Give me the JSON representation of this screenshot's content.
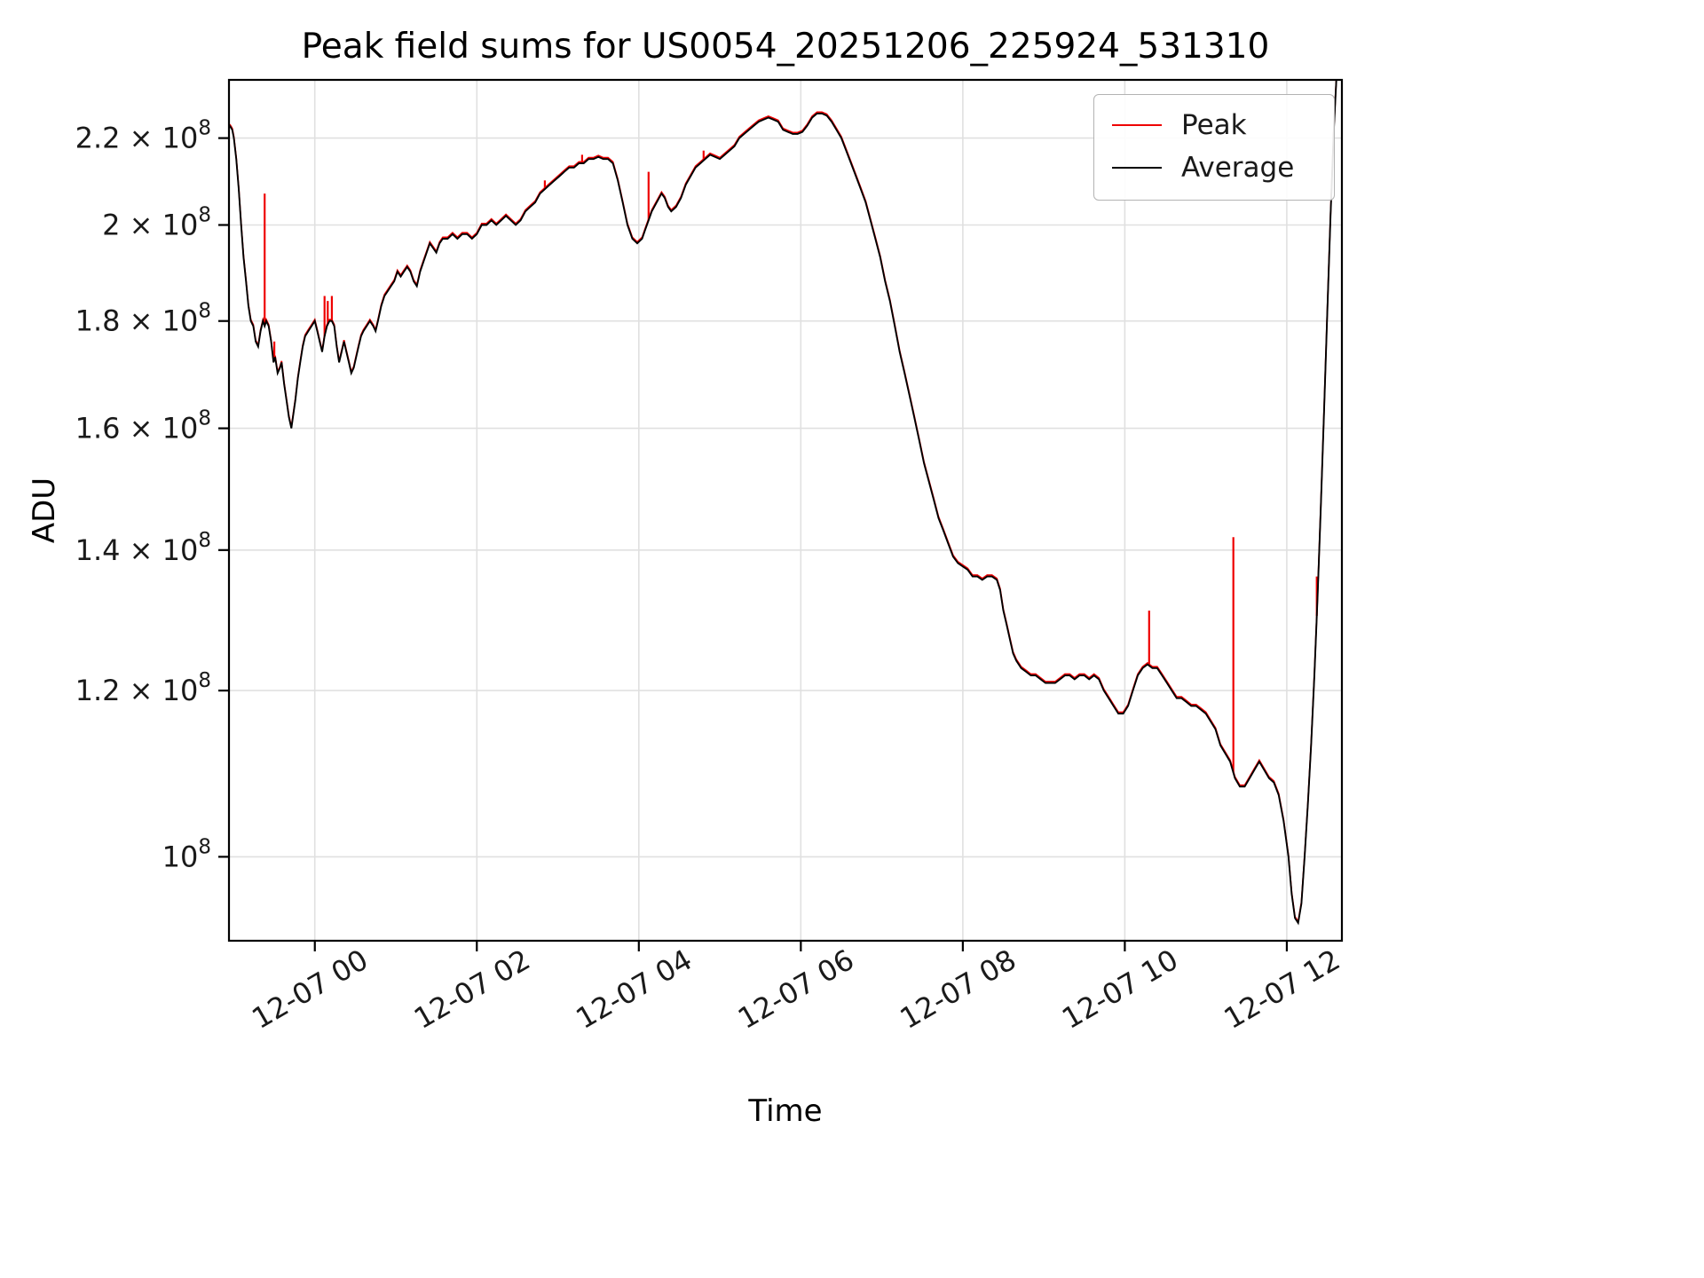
{
  "chart_data": {
    "type": "line",
    "title": "Peak field sums for US0054_20251206_225924_531310",
    "xlabel": "Time",
    "ylabel": "ADU",
    "y_scale": "log",
    "y_value_unit": "1e8 ADU",
    "x_unit": "hours relative to 2025-12-07 00:00",
    "xlim": [
      -1.06,
      12.68
    ],
    "ylim_1e8": [
      0.912,
      2.345
    ],
    "grid": true,
    "grid_color": "#e0e0e0",
    "legend_position": "upper right",
    "x_ticks": [
      {
        "t": 0,
        "label": "12-07 00"
      },
      {
        "t": 2,
        "label": "12-07 02"
      },
      {
        "t": 4,
        "label": "12-07 04"
      },
      {
        "t": 6,
        "label": "12-07 06"
      },
      {
        "t": 8,
        "label": "12-07 08"
      },
      {
        "t": 10,
        "label": "12-07 10"
      },
      {
        "t": 12,
        "label": "12-07 12"
      }
    ],
    "y_ticks": [
      {
        "v": 1.0,
        "mantissa": "10",
        "exp": "8"
      },
      {
        "v": 1.2,
        "mantissa": "1.2 × 10",
        "exp": "8"
      },
      {
        "v": 1.4,
        "mantissa": "1.4 × 10",
        "exp": "8"
      },
      {
        "v": 1.6,
        "mantissa": "1.6 × 10",
        "exp": "8"
      },
      {
        "v": 1.8,
        "mantissa": "1.8 × 10",
        "exp": "8"
      },
      {
        "v": 2.0,
        "mantissa": "2 × 10",
        "exp": "8"
      },
      {
        "v": 2.2,
        "mantissa": "2.2 × 10",
        "exp": "8"
      }
    ],
    "series": [
      {
        "name": "Peak",
        "color": "#ee0000",
        "note": "follows Average with upward spikes",
        "spikes": [
          [
            -0.62,
            2.07
          ],
          [
            -0.5,
            1.76
          ],
          [
            0.12,
            1.85
          ],
          [
            0.16,
            1.84
          ],
          [
            0.21,
            1.85
          ],
          [
            2.84,
            2.1
          ],
          [
            3.3,
            2.16
          ],
          [
            4.12,
            2.12
          ],
          [
            4.8,
            2.17
          ],
          [
            10.3,
            1.31
          ],
          [
            11.34,
            1.42
          ],
          [
            12.37,
            1.36
          ]
        ]
      },
      {
        "name": "Average",
        "color": "#000000",
        "points": [
          [
            -1.05,
            2.23
          ],
          [
            -1.02,
            2.22
          ],
          [
            -1.0,
            2.2
          ],
          [
            -0.97,
            2.15
          ],
          [
            -0.94,
            2.08
          ],
          [
            -0.91,
            2.0
          ],
          [
            -0.88,
            1.93
          ],
          [
            -0.85,
            1.88
          ],
          [
            -0.82,
            1.83
          ],
          [
            -0.79,
            1.8
          ],
          [
            -0.76,
            1.79
          ],
          [
            -0.73,
            1.76
          ],
          [
            -0.7,
            1.75
          ],
          [
            -0.67,
            1.78
          ],
          [
            -0.64,
            1.8
          ],
          [
            -0.62,
            1.79
          ],
          [
            -0.6,
            1.8
          ],
          [
            -0.57,
            1.79
          ],
          [
            -0.54,
            1.76
          ],
          [
            -0.51,
            1.72
          ],
          [
            -0.49,
            1.73
          ],
          [
            -0.46,
            1.7
          ],
          [
            -0.43,
            1.71
          ],
          [
            -0.41,
            1.72
          ],
          [
            -0.38,
            1.68
          ],
          [
            -0.35,
            1.65
          ],
          [
            -0.32,
            1.62
          ],
          [
            -0.29,
            1.6
          ],
          [
            -0.27,
            1.62
          ],
          [
            -0.24,
            1.65
          ],
          [
            -0.21,
            1.69
          ],
          [
            -0.18,
            1.72
          ],
          [
            -0.15,
            1.75
          ],
          [
            -0.12,
            1.77
          ],
          [
            -0.08,
            1.78
          ],
          [
            -0.04,
            1.79
          ],
          [
            0.0,
            1.8
          ],
          [
            0.03,
            1.78
          ],
          [
            0.06,
            1.76
          ],
          [
            0.09,
            1.74
          ],
          [
            0.12,
            1.77
          ],
          [
            0.15,
            1.79
          ],
          [
            0.18,
            1.8
          ],
          [
            0.21,
            1.8
          ],
          [
            0.24,
            1.79
          ],
          [
            0.27,
            1.75
          ],
          [
            0.3,
            1.72
          ],
          [
            0.33,
            1.74
          ],
          [
            0.36,
            1.76
          ],
          [
            0.39,
            1.74
          ],
          [
            0.42,
            1.72
          ],
          [
            0.45,
            1.7
          ],
          [
            0.48,
            1.71
          ],
          [
            0.51,
            1.73
          ],
          [
            0.54,
            1.75
          ],
          [
            0.57,
            1.77
          ],
          [
            0.6,
            1.78
          ],
          [
            0.64,
            1.79
          ],
          [
            0.68,
            1.8
          ],
          [
            0.72,
            1.79
          ],
          [
            0.75,
            1.78
          ],
          [
            0.78,
            1.8
          ],
          [
            0.82,
            1.83
          ],
          [
            0.86,
            1.85
          ],
          [
            0.9,
            1.86
          ],
          [
            0.94,
            1.87
          ],
          [
            0.98,
            1.88
          ],
          [
            1.02,
            1.9
          ],
          [
            1.06,
            1.89
          ],
          [
            1.1,
            1.9
          ],
          [
            1.14,
            1.91
          ],
          [
            1.18,
            1.9
          ],
          [
            1.22,
            1.88
          ],
          [
            1.26,
            1.87
          ],
          [
            1.3,
            1.9
          ],
          [
            1.34,
            1.92
          ],
          [
            1.38,
            1.94
          ],
          [
            1.42,
            1.96
          ],
          [
            1.46,
            1.95
          ],
          [
            1.5,
            1.94
          ],
          [
            1.54,
            1.96
          ],
          [
            1.58,
            1.97
          ],
          [
            1.64,
            1.97
          ],
          [
            1.7,
            1.98
          ],
          [
            1.76,
            1.97
          ],
          [
            1.82,
            1.98
          ],
          [
            1.88,
            1.98
          ],
          [
            1.94,
            1.97
          ],
          [
            2.0,
            1.98
          ],
          [
            2.06,
            2.0
          ],
          [
            2.12,
            2.0
          ],
          [
            2.18,
            2.01
          ],
          [
            2.24,
            2.0
          ],
          [
            2.3,
            2.01
          ],
          [
            2.36,
            2.02
          ],
          [
            2.42,
            2.01
          ],
          [
            2.48,
            2.0
          ],
          [
            2.54,
            2.01
          ],
          [
            2.6,
            2.03
          ],
          [
            2.66,
            2.04
          ],
          [
            2.72,
            2.05
          ],
          [
            2.78,
            2.07
          ],
          [
            2.84,
            2.08
          ],
          [
            2.9,
            2.09
          ],
          [
            2.96,
            2.1
          ],
          [
            3.02,
            2.11
          ],
          [
            3.08,
            2.12
          ],
          [
            3.14,
            2.13
          ],
          [
            3.2,
            2.13
          ],
          [
            3.26,
            2.14
          ],
          [
            3.32,
            2.14
          ],
          [
            3.38,
            2.15
          ],
          [
            3.44,
            2.15
          ],
          [
            3.5,
            2.155
          ],
          [
            3.56,
            2.15
          ],
          [
            3.62,
            2.15
          ],
          [
            3.68,
            2.14
          ],
          [
            3.74,
            2.1
          ],
          [
            3.8,
            2.05
          ],
          [
            3.86,
            2.0
          ],
          [
            3.92,
            1.97
          ],
          [
            3.98,
            1.96
          ],
          [
            4.04,
            1.97
          ],
          [
            4.08,
            1.99
          ],
          [
            4.12,
            2.01
          ],
          [
            4.16,
            2.03
          ],
          [
            4.22,
            2.05
          ],
          [
            4.28,
            2.07
          ],
          [
            4.32,
            2.06
          ],
          [
            4.36,
            2.04
          ],
          [
            4.4,
            2.03
          ],
          [
            4.46,
            2.04
          ],
          [
            4.52,
            2.06
          ],
          [
            4.58,
            2.09
          ],
          [
            4.64,
            2.11
          ],
          [
            4.7,
            2.13
          ],
          [
            4.76,
            2.14
          ],
          [
            4.82,
            2.15
          ],
          [
            4.88,
            2.16
          ],
          [
            4.94,
            2.155
          ],
          [
            5.0,
            2.15
          ],
          [
            5.06,
            2.16
          ],
          [
            5.12,
            2.17
          ],
          [
            5.18,
            2.18
          ],
          [
            5.24,
            2.2
          ],
          [
            5.3,
            2.21
          ],
          [
            5.36,
            2.22
          ],
          [
            5.42,
            2.23
          ],
          [
            5.48,
            2.24
          ],
          [
            5.54,
            2.245
          ],
          [
            5.6,
            2.25
          ],
          [
            5.66,
            2.245
          ],
          [
            5.72,
            2.24
          ],
          [
            5.78,
            2.22
          ],
          [
            5.84,
            2.215
          ],
          [
            5.9,
            2.21
          ],
          [
            5.96,
            2.21
          ],
          [
            6.02,
            2.215
          ],
          [
            6.08,
            2.23
          ],
          [
            6.14,
            2.25
          ],
          [
            6.2,
            2.26
          ],
          [
            6.26,
            2.26
          ],
          [
            6.32,
            2.255
          ],
          [
            6.38,
            2.24
          ],
          [
            6.44,
            2.22
          ],
          [
            6.5,
            2.2
          ],
          [
            6.56,
            2.17
          ],
          [
            6.62,
            2.14
          ],
          [
            6.68,
            2.11
          ],
          [
            6.74,
            2.08
          ],
          [
            6.8,
            2.05
          ],
          [
            6.86,
            2.01
          ],
          [
            6.92,
            1.97
          ],
          [
            6.98,
            1.93
          ],
          [
            7.04,
            1.88
          ],
          [
            7.1,
            1.84
          ],
          [
            7.16,
            1.79
          ],
          [
            7.22,
            1.74
          ],
          [
            7.28,
            1.7
          ],
          [
            7.34,
            1.66
          ],
          [
            7.4,
            1.62
          ],
          [
            7.46,
            1.58
          ],
          [
            7.52,
            1.54
          ],
          [
            7.58,
            1.51
          ],
          [
            7.64,
            1.48
          ],
          [
            7.7,
            1.45
          ],
          [
            7.76,
            1.43
          ],
          [
            7.82,
            1.41
          ],
          [
            7.88,
            1.39
          ],
          [
            7.94,
            1.38
          ],
          [
            8.0,
            1.375
          ],
          [
            8.06,
            1.37
          ],
          [
            8.12,
            1.36
          ],
          [
            8.18,
            1.36
          ],
          [
            8.24,
            1.355
          ],
          [
            8.3,
            1.36
          ],
          [
            8.36,
            1.36
          ],
          [
            8.42,
            1.355
          ],
          [
            8.46,
            1.34
          ],
          [
            8.5,
            1.31
          ],
          [
            8.54,
            1.29
          ],
          [
            8.58,
            1.27
          ],
          [
            8.62,
            1.25
          ],
          [
            8.66,
            1.24
          ],
          [
            8.72,
            1.23
          ],
          [
            8.78,
            1.225
          ],
          [
            8.84,
            1.22
          ],
          [
            8.9,
            1.22
          ],
          [
            8.96,
            1.215
          ],
          [
            9.02,
            1.21
          ],
          [
            9.08,
            1.21
          ],
          [
            9.14,
            1.21
          ],
          [
            9.2,
            1.215
          ],
          [
            9.26,
            1.22
          ],
          [
            9.32,
            1.22
          ],
          [
            9.38,
            1.215
          ],
          [
            9.44,
            1.22
          ],
          [
            9.5,
            1.22
          ],
          [
            9.56,
            1.215
          ],
          [
            9.62,
            1.22
          ],
          [
            9.68,
            1.215
          ],
          [
            9.74,
            1.2
          ],
          [
            9.8,
            1.19
          ],
          [
            9.86,
            1.18
          ],
          [
            9.92,
            1.17
          ],
          [
            9.98,
            1.17
          ],
          [
            10.04,
            1.18
          ],
          [
            10.1,
            1.2
          ],
          [
            10.16,
            1.22
          ],
          [
            10.22,
            1.23
          ],
          [
            10.28,
            1.235
          ],
          [
            10.34,
            1.23
          ],
          [
            10.4,
            1.23
          ],
          [
            10.46,
            1.22
          ],
          [
            10.52,
            1.21
          ],
          [
            10.58,
            1.2
          ],
          [
            10.64,
            1.19
          ],
          [
            10.7,
            1.19
          ],
          [
            10.76,
            1.185
          ],
          [
            10.82,
            1.18
          ],
          [
            10.88,
            1.18
          ],
          [
            10.94,
            1.175
          ],
          [
            11.0,
            1.17
          ],
          [
            11.06,
            1.16
          ],
          [
            11.12,
            1.15
          ],
          [
            11.18,
            1.13
          ],
          [
            11.24,
            1.12
          ],
          [
            11.3,
            1.11
          ],
          [
            11.36,
            1.09
          ],
          [
            11.42,
            1.08
          ],
          [
            11.48,
            1.08
          ],
          [
            11.54,
            1.09
          ],
          [
            11.6,
            1.1
          ],
          [
            11.66,
            1.11
          ],
          [
            11.72,
            1.1
          ],
          [
            11.78,
            1.09
          ],
          [
            11.84,
            1.085
          ],
          [
            11.9,
            1.07
          ],
          [
            11.96,
            1.04
          ],
          [
            12.02,
            1.0
          ],
          [
            12.06,
            0.96
          ],
          [
            12.1,
            0.935
          ],
          [
            12.14,
            0.93
          ],
          [
            12.18,
            0.95
          ],
          [
            12.22,
            1.0
          ],
          [
            12.26,
            1.06
          ],
          [
            12.3,
            1.13
          ],
          [
            12.34,
            1.22
          ],
          [
            12.38,
            1.33
          ],
          [
            12.42,
            1.47
          ],
          [
            12.46,
            1.63
          ],
          [
            12.5,
            1.82
          ],
          [
            12.54,
            2.02
          ],
          [
            12.58,
            2.22
          ],
          [
            12.62,
            2.38
          ],
          [
            12.66,
            2.5
          ]
        ]
      }
    ],
    "legend": [
      "Peak",
      "Average"
    ]
  }
}
